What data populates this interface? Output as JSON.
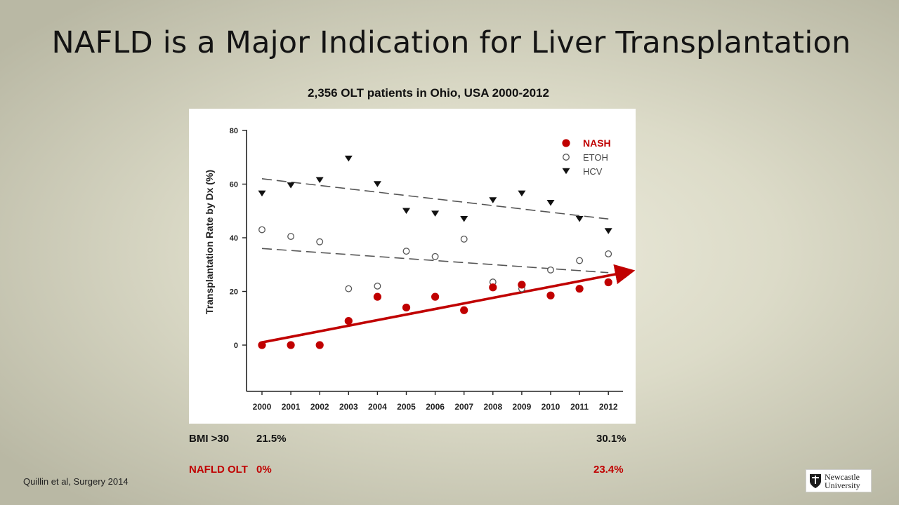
{
  "slide": {
    "title": "NAFLD is a Major Indication for Liver Transplantation",
    "subtitle": "2,356 OLT patients in Ohio, USA 2000-2012",
    "citation": "Quillin et al, Surgery 2014",
    "logo": {
      "text_line1": "Newcastle",
      "text_line2": "University"
    }
  },
  "stats": {
    "bmi": {
      "label": "BMI >30",
      "start": "21.5%",
      "end": "30.1%"
    },
    "nafld": {
      "label": "NAFLD OLT",
      "start": "0%",
      "end": "23.4%"
    }
  },
  "colors": {
    "nash": "#c00000",
    "etoh": "#555555",
    "hcv": "#111111",
    "stat_red": "#c00000"
  },
  "chart_data": {
    "type": "scatter",
    "ylabel": "Transplantation Rate by Dx (%)",
    "xlabel": "",
    "ylim": [
      -17,
      80
    ],
    "yticks": [
      0,
      20,
      40,
      60,
      80
    ],
    "categories": [
      "2000",
      "2001",
      "2002",
      "2003",
      "2004",
      "2005",
      "2006",
      "2007",
      "2008",
      "2009",
      "2010",
      "2011",
      "2012"
    ],
    "legend_position": "top-right",
    "grid": false,
    "series": [
      {
        "name": "NASH",
        "marker": "filled-circle",
        "values": [
          0,
          0,
          0,
          9,
          18,
          14,
          18,
          13,
          21.5,
          22.5,
          18.5,
          21,
          23.4
        ],
        "trend": {
          "start": [
            2000,
            1
          ],
          "end": [
            2013,
            28
          ],
          "style": "solid-arrow"
        }
      },
      {
        "name": "ETOH",
        "marker": "open-circle",
        "values": [
          43,
          40.5,
          38.5,
          21,
          22,
          35,
          33,
          39.5,
          23.5,
          21,
          28,
          31.5,
          34
        ],
        "trend": {
          "start": [
            2000,
            36
          ],
          "end": [
            2012,
            27
          ],
          "style": "dashed"
        }
      },
      {
        "name": "HCV",
        "marker": "filled-triangle-down",
        "values": [
          56.5,
          59.5,
          61.5,
          69.5,
          60,
          50,
          49,
          47,
          54,
          56.5,
          53,
          47,
          42.5
        ],
        "trend": {
          "start": [
            2000,
            62
          ],
          "end": [
            2012,
            47
          ],
          "style": "dashed"
        }
      }
    ]
  }
}
